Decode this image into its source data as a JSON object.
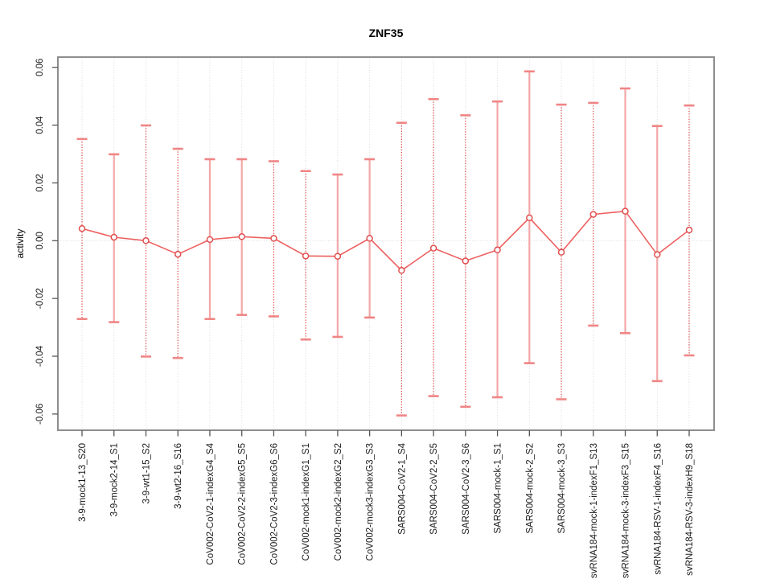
{
  "chart_data": {
    "type": "line",
    "title": "ZNF35",
    "xlabel": "",
    "ylabel": "activity",
    "ylim": [
      -0.0625,
      0.0625
    ],
    "y_ticks": [
      0.06,
      0.04,
      0.02,
      0.0,
      -0.02,
      -0.04,
      -0.06
    ],
    "grid": "vertical dotted gridline per category; dotted horizontal line at y=0 only",
    "legend": "none",
    "marker": "open-circle",
    "categories": [
      "3-9-mock1-13_S20",
      "3-9-mock2-14_S1",
      "3-9-wt1-15_S2",
      "3-9-wt2-16_S16",
      "CoV002-CoV2-1-indexG4_S4",
      "CoV002-CoV2-2-indexG5_S5",
      "CoV002-CoV2-3-indexG6_S6",
      "CoV002-mock1-indexG1_S1",
      "CoV002-mock2-indexG2_S2",
      "CoV002-mock3-indexG3_S3",
      "SARS004-CoV2-1_S4",
      "SARS004-CoV2-2_S5",
      "SARS004-CoV2-3_S6",
      "SARS004-mock-1_S1",
      "SARS004-mock-2_S2",
      "SARS004-mock-3_S3",
      "svRNA184-mock-1-indexF1_S13",
      "svRNA184-mock-3-indexF3_S15",
      "svRNA184-RSV-1-indexF4_S16",
      "svRNA184-RSV-3-indexH9_S18"
    ],
    "series": [
      {
        "name": "activity",
        "values": [
          0.0042,
          0.0012,
          0.0,
          -0.0047,
          0.0004,
          0.0014,
          0.0008,
          -0.0053,
          -0.0054,
          0.0008,
          -0.0103,
          -0.0026,
          -0.007,
          -0.0032,
          0.0079,
          -0.004,
          0.0091,
          0.0102,
          -0.0048,
          0.0037
        ],
        "error_high": [
          0.0352,
          0.0299,
          0.0399,
          0.0318,
          0.0282,
          0.0282,
          0.0275,
          0.0241,
          0.0229,
          0.0282,
          0.0408,
          0.049,
          0.0434,
          0.0482,
          0.0586,
          0.0471,
          0.0477,
          0.0527,
          0.0397,
          0.0468
        ],
        "error_low": [
          -0.0271,
          -0.0282,
          -0.0401,
          -0.0406,
          -0.0271,
          -0.0257,
          -0.0262,
          -0.0342,
          -0.0333,
          -0.0266,
          -0.0605,
          -0.0538,
          -0.0575,
          -0.0542,
          -0.0424,
          -0.0549,
          -0.0294,
          -0.032,
          -0.0486,
          -0.0397
        ]
      }
    ],
    "colors": {
      "series_line": "#ee6060",
      "marker_stroke": "#e04e4e",
      "marker_fill": "#ffffff",
      "error_stem_dotted": "#e25151",
      "error_stem_solid": "#f3a7a7",
      "error_cap": "#f08585",
      "grid": "#d8d8d8",
      "zero_line": "#d8d8d8",
      "box": "#8e8e8e",
      "tick": "#555555",
      "text": "#1a1a1a",
      "background": "#ffffff"
    }
  }
}
